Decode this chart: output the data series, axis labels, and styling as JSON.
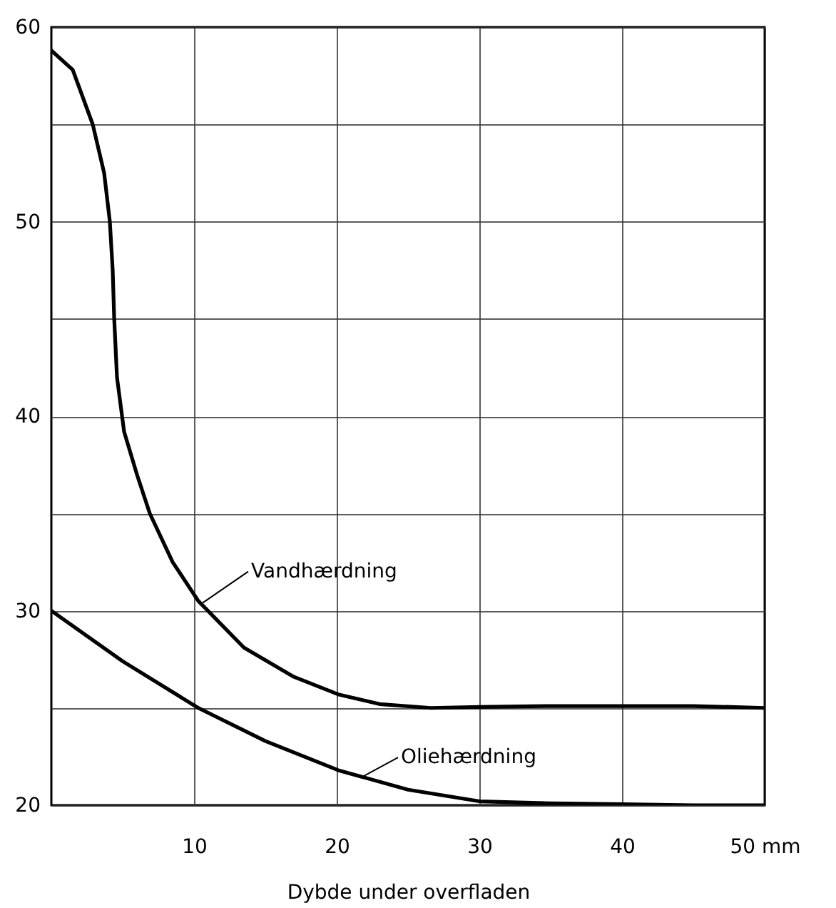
{
  "chart_data": {
    "type": "line",
    "xlabel": "Dybde under overfladen",
    "xlim": [
      0,
      50
    ],
    "ylim": [
      20,
      60
    ],
    "xticks": [
      10,
      20,
      30,
      40,
      {
        "value": 50,
        "label": "50 mm"
      }
    ],
    "yticks": [
      20,
      {
        "value": 25,
        "label": null
      },
      30,
      {
        "value": 35,
        "label": null
      },
      40,
      {
        "value": 45,
        "label": null
      },
      50,
      {
        "value": 55,
        "label": null
      },
      60
    ],
    "grid": true,
    "legend": false,
    "marker": "none",
    "line_style": "solid",
    "series": [
      {
        "color": "#000000",
        "x": [
          0,
          1.5,
          2.9,
          3.7,
          4.1,
          4.3,
          4.4,
          4.6,
          5.1,
          6,
          6.9,
          8.5,
          10.3,
          13.5,
          17,
          20.1,
          23,
          26.6,
          30,
          35,
          40,
          45,
          50
        ],
        "values": [
          58.8,
          57.8,
          55,
          52.5,
          50,
          47.5,
          45.1,
          42,
          39.2,
          37,
          35,
          32.5,
          30.5,
          28.1,
          26.6,
          25.7,
          25.2,
          25,
          25.05,
          25.1,
          25.1,
          25.1,
          25
        ]
      },
      {
        "color": "#000000",
        "x": [
          0,
          5,
          10.3,
          15,
          20.1,
          25,
          30,
          35,
          40,
          45,
          50
        ],
        "values": [
          30,
          27.4,
          25,
          23.3,
          21.8,
          20.8,
          20.2,
          20.1,
          20.05,
          20,
          20
        ]
      }
    ],
    "annotations": [
      {
        "text": "Vandhærdning",
        "x": 10.6,
        "y": 30.4
      },
      {
        "text": "Oliehærdning",
        "x": 21.9,
        "y": 21.5
      }
    ]
  }
}
